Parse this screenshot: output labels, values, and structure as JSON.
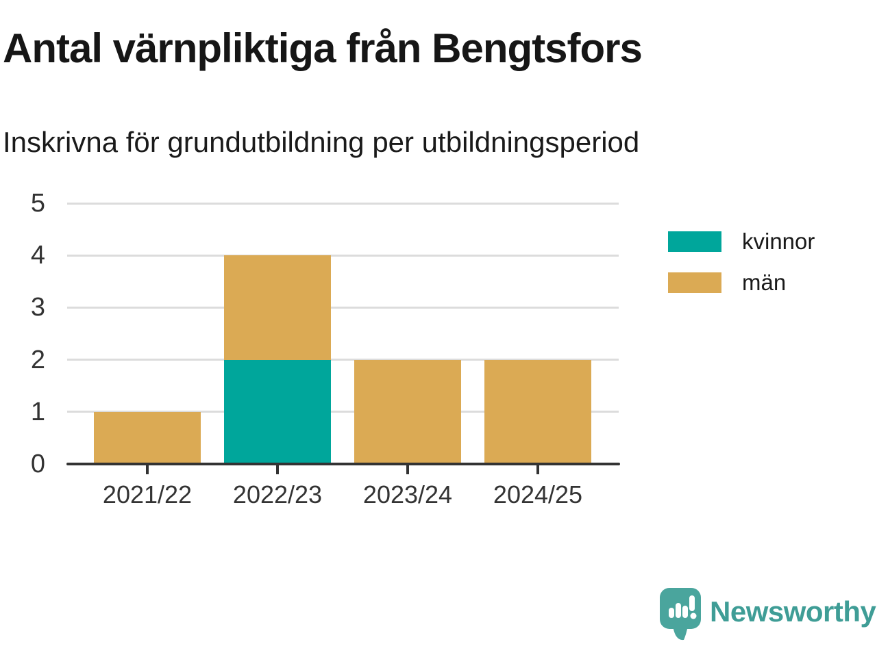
{
  "header": {
    "title": "Antal värnpliktiga från Bengtsfors",
    "subtitle": "Inskrivna för grundutbildning per utbildningsperiod"
  },
  "chart_data": {
    "type": "bar",
    "stacked": true,
    "categories": [
      "2021/22",
      "2022/23",
      "2023/24",
      "2024/25"
    ],
    "series": [
      {
        "name": "kvinnor",
        "color": "#00A69B",
        "values": [
          0,
          2,
          0,
          0
        ]
      },
      {
        "name": "män",
        "color": "#DBAA54",
        "values": [
          1,
          2,
          2,
          2
        ]
      }
    ],
    "title": "Antal värnpliktiga från Bengtsfors",
    "subtitle": "Inskrivna för grundutbildning per utbildningsperiod",
    "xlabel": "",
    "ylabel": "",
    "ylim": [
      0,
      5
    ],
    "yticks": [
      0,
      1,
      2,
      3,
      4,
      5
    ],
    "grid": true,
    "legend_position": "right"
  },
  "legend": {
    "items": [
      {
        "label": "kvinnor",
        "color": "#00A69B"
      },
      {
        "label": "män",
        "color": "#DBAA54"
      }
    ]
  },
  "footer": {
    "brand": "Newsworthy",
    "logo_icon": "newsworthy-speech-bubble-bar-chart-icon",
    "brand_color": "#3F9D96",
    "icon_color": "#4AA59D"
  },
  "colors": {
    "kvinnor": "#00A69B",
    "man": "#DBAA54",
    "axis": "#333333",
    "grid": "#DCDCDC",
    "text": "#1A1A1A"
  }
}
